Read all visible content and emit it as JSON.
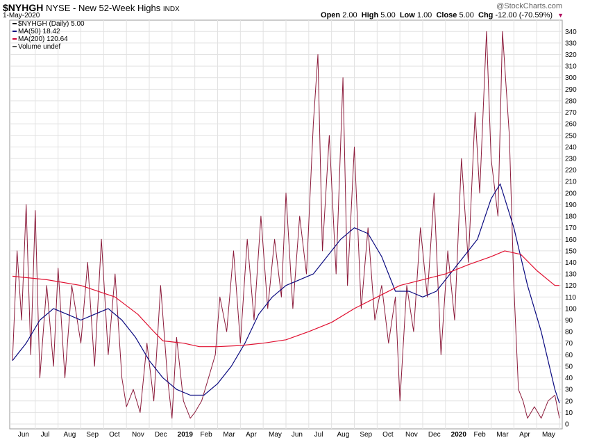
{
  "header": {
    "symbol": "$NYHGH",
    "exchange_desc": "NYSE - New 52-Week Highs",
    "index_tag": "INDX",
    "date": "1-May-2020",
    "brand": "@StockCharts.com",
    "ohlc": {
      "open_label": "Open",
      "open": "2.00",
      "high_label": "High",
      "high": "5.00",
      "low_label": "Low",
      "low": "1.00",
      "close_label": "Close",
      "close": "5.00",
      "chg_label": "Chg",
      "chg": "-12.00 (-70.59%)",
      "arrow": "▼"
    }
  },
  "legend": [
    {
      "label": "$NYHGH (Daily) 5.00",
      "color": "#000000"
    },
    {
      "label": "MA(50) 18.42",
      "color": "#000080"
    },
    {
      "label": "MA(200) 120.64",
      "color": "#cc0033"
    },
    {
      "label": "Volume undef",
      "color": "#555555"
    }
  ],
  "colors": {
    "price": "#8b1a3a",
    "ma50": "#0a0a80",
    "ma200": "#e01030",
    "grid": "#e2e2e2",
    "frame": "#999999"
  },
  "chart_data": {
    "type": "line",
    "title": "$NYHGH NYSE - New 52-Week Highs",
    "ylim": [
      0,
      345
    ],
    "y_ticks": [
      0,
      10,
      20,
      30,
      40,
      50,
      60,
      70,
      80,
      90,
      100,
      110,
      120,
      130,
      140,
      150,
      160,
      170,
      180,
      190,
      200,
      210,
      220,
      230,
      240,
      250,
      260,
      270,
      280,
      290,
      300,
      310,
      320,
      330,
      340
    ],
    "x_ticks": [
      {
        "label": "Jun",
        "m": 1
      },
      {
        "label": "Jul",
        "m": 2
      },
      {
        "label": "Aug",
        "m": 3
      },
      {
        "label": "Sep",
        "m": 4
      },
      {
        "label": "Oct",
        "m": 5
      },
      {
        "label": "Nov",
        "m": 6
      },
      {
        "label": "Dec",
        "m": 7
      },
      {
        "label": "2019",
        "m": 8,
        "bold": true
      },
      {
        "label": "Feb",
        "m": 9
      },
      {
        "label": "Mar",
        "m": 10
      },
      {
        "label": "Apr",
        "m": 11
      },
      {
        "label": "May",
        "m": 12
      },
      {
        "label": "Jun",
        "m": 13
      },
      {
        "label": "Jul",
        "m": 14
      },
      {
        "label": "Aug",
        "m": 15
      },
      {
        "label": "Sep",
        "m": 16
      },
      {
        "label": "Oct",
        "m": 17
      },
      {
        "label": "Nov",
        "m": 18
      },
      {
        "label": "Dec",
        "m": 19
      },
      {
        "label": "2020",
        "m": 20,
        "bold": true
      },
      {
        "label": "Feb",
        "m": 21
      },
      {
        "label": "Mar",
        "m": 22
      },
      {
        "label": "Apr",
        "m": 23
      },
      {
        "label": "May",
        "m": 24
      }
    ],
    "x_range_months": [
      0,
      24
    ],
    "series": [
      {
        "name": "$NYHGH (Daily)",
        "anchors": [
          [
            0,
            55
          ],
          [
            0.2,
            150
          ],
          [
            0.4,
            90
          ],
          [
            0.6,
            190
          ],
          [
            0.8,
            60
          ],
          [
            1.0,
            185
          ],
          [
            1.2,
            40
          ],
          [
            1.5,
            120
          ],
          [
            1.8,
            50
          ],
          [
            2.0,
            135
          ],
          [
            2.3,
            40
          ],
          [
            2.6,
            120
          ],
          [
            3.0,
            70
          ],
          [
            3.3,
            140
          ],
          [
            3.6,
            50
          ],
          [
            3.9,
            160
          ],
          [
            4.2,
            60
          ],
          [
            4.5,
            130
          ],
          [
            4.8,
            40
          ],
          [
            5.0,
            15
          ],
          [
            5.3,
            30
          ],
          [
            5.6,
            10
          ],
          [
            5.9,
            70
          ],
          [
            6.2,
            20
          ],
          [
            6.5,
            120
          ],
          [
            6.8,
            40
          ],
          [
            7.0,
            5
          ],
          [
            7.2,
            75
          ],
          [
            7.5,
            20
          ],
          [
            7.8,
            5
          ],
          [
            8.0,
            10
          ],
          [
            8.3,
            20
          ],
          [
            8.6,
            40
          ],
          [
            8.9,
            60
          ],
          [
            9.1,
            110
          ],
          [
            9.4,
            80
          ],
          [
            9.7,
            150
          ],
          [
            10.0,
            70
          ],
          [
            10.3,
            160
          ],
          [
            10.6,
            90
          ],
          [
            10.9,
            180
          ],
          [
            11.2,
            100
          ],
          [
            11.5,
            160
          ],
          [
            11.8,
            110
          ],
          [
            12.0,
            200
          ],
          [
            12.3,
            100
          ],
          [
            12.6,
            180
          ],
          [
            12.9,
            130
          ],
          [
            13.2,
            260
          ],
          [
            13.4,
            320
          ],
          [
            13.6,
            150
          ],
          [
            13.9,
            250
          ],
          [
            14.2,
            130
          ],
          [
            14.5,
            300
          ],
          [
            14.7,
            120
          ],
          [
            15.0,
            240
          ],
          [
            15.3,
            100
          ],
          [
            15.6,
            170
          ],
          [
            15.9,
            90
          ],
          [
            16.2,
            120
          ],
          [
            16.5,
            70
          ],
          [
            16.8,
            110
          ],
          [
            17.0,
            20
          ],
          [
            17.3,
            120
          ],
          [
            17.6,
            80
          ],
          [
            17.9,
            170
          ],
          [
            18.2,
            110
          ],
          [
            18.5,
            200
          ],
          [
            18.8,
            60
          ],
          [
            19.1,
            150
          ],
          [
            19.4,
            90
          ],
          [
            19.7,
            230
          ],
          [
            20.0,
            140
          ],
          [
            20.3,
            270
          ],
          [
            20.5,
            200
          ],
          [
            20.8,
            340
          ],
          [
            21.0,
            230
          ],
          [
            21.3,
            180
          ],
          [
            21.5,
            340
          ],
          [
            21.8,
            250
          ],
          [
            22.0,
            120
          ],
          [
            22.2,
            30
          ],
          [
            22.4,
            20
          ],
          [
            22.6,
            5
          ],
          [
            22.9,
            15
          ],
          [
            23.2,
            5
          ],
          [
            23.5,
            20
          ],
          [
            23.8,
            25
          ],
          [
            24.0,
            5
          ]
        ]
      },
      {
        "name": "MA(50)",
        "anchors": [
          [
            0,
            55
          ],
          [
            0.6,
            70
          ],
          [
            1.2,
            90
          ],
          [
            1.8,
            100
          ],
          [
            2.4,
            95
          ],
          [
            3.0,
            90
          ],
          [
            3.6,
            95
          ],
          [
            4.2,
            100
          ],
          [
            4.8,
            90
          ],
          [
            5.4,
            75
          ],
          [
            6.0,
            55
          ],
          [
            6.6,
            40
          ],
          [
            7.2,
            30
          ],
          [
            7.8,
            25
          ],
          [
            8.4,
            25
          ],
          [
            9.0,
            35
          ],
          [
            9.6,
            50
          ],
          [
            10.2,
            70
          ],
          [
            10.8,
            95
          ],
          [
            11.4,
            110
          ],
          [
            12.0,
            120
          ],
          [
            12.6,
            125
          ],
          [
            13.2,
            130
          ],
          [
            13.8,
            145
          ],
          [
            14.4,
            160
          ],
          [
            15.0,
            170
          ],
          [
            15.6,
            165
          ],
          [
            16.2,
            145
          ],
          [
            16.8,
            115
          ],
          [
            17.4,
            115
          ],
          [
            18.0,
            110
          ],
          [
            18.6,
            115
          ],
          [
            19.2,
            130
          ],
          [
            19.8,
            145
          ],
          [
            20.4,
            160
          ],
          [
            21.0,
            195
          ],
          [
            21.4,
            208
          ],
          [
            22.0,
            170
          ],
          [
            22.6,
            120
          ],
          [
            23.2,
            80
          ],
          [
            23.8,
            30
          ],
          [
            24.0,
            18
          ]
        ]
      },
      {
        "name": "MA(200)",
        "anchors": [
          [
            0,
            128
          ],
          [
            1.5,
            125
          ],
          [
            3.0,
            120
          ],
          [
            4.5,
            110
          ],
          [
            5.5,
            95
          ],
          [
            6.2,
            80
          ],
          [
            6.6,
            72
          ],
          [
            7.5,
            70
          ],
          [
            8.2,
            67
          ],
          [
            9.0,
            67
          ],
          [
            10.0,
            68
          ],
          [
            11.0,
            70
          ],
          [
            12.0,
            73
          ],
          [
            13.0,
            80
          ],
          [
            14.0,
            88
          ],
          [
            15.0,
            100
          ],
          [
            16.0,
            110
          ],
          [
            17.0,
            120
          ],
          [
            18.0,
            125
          ],
          [
            19.0,
            130
          ],
          [
            20.0,
            138
          ],
          [
            21.0,
            145
          ],
          [
            21.6,
            150
          ],
          [
            22.3,
            147
          ],
          [
            23.0,
            133
          ],
          [
            23.8,
            120
          ],
          [
            24.0,
            120
          ]
        ]
      }
    ]
  }
}
